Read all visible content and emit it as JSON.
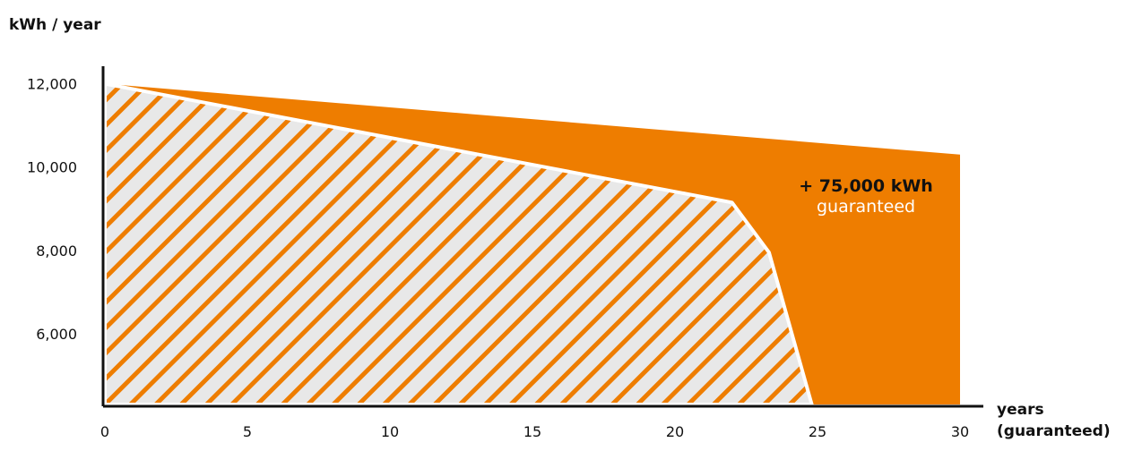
{
  "chart_data": {
    "type": "area",
    "ylabel": "kWh / year",
    "xlabel": "years\n(guaranteed)",
    "xlim": [
      0,
      30
    ],
    "ylim": [
      4300,
      12250
    ],
    "x_ticks": [
      0,
      5,
      10,
      15,
      20,
      25,
      30
    ],
    "y_ticks": [
      6000,
      8000,
      10000,
      12000
    ],
    "y_tick_labels": [
      "6,000",
      "8,000",
      "10,000",
      "12,000"
    ],
    "grid": false,
    "series": [
      {
        "x": [
          0,
          30,
          30,
          0
        ],
        "y": [
          12000,
          10300,
          4300,
          4300
        ],
        "color": "#EE7D00"
      },
      {
        "x": [
          0,
          22,
          23.3,
          24.8,
          0
        ],
        "y": [
          12000,
          9150,
          7950,
          4300,
          4300
        ],
        "fill": "#E8E8E8",
        "hatch_color": "#EE7D00",
        "outline_color": "#FFFFFF"
      }
    ],
    "annotation": {
      "lines": [
        "+ 75,000 kWh",
        "guaranteed"
      ],
      "x": 26.7,
      "y": 9200
    }
  }
}
